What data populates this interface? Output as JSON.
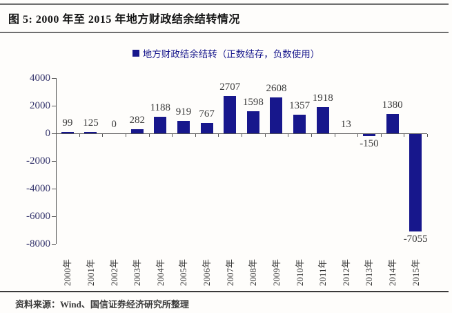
{
  "figure": {
    "title": "图 5: 2000 年至 2015 年地方财政结余结转情况",
    "source": "资料来源：Wind、国信证券经济研究所整理"
  },
  "legend": {
    "label": "地方财政结余结转（正数结存，负数使用）"
  },
  "colors": {
    "bar": "#17178c",
    "legend_text": "#17178c",
    "axis": "#555555",
    "ytick_text": "#33336b",
    "value_text": "#3b3b3b"
  },
  "chart_data": {
    "type": "bar",
    "title": "2000 年至 2015 年地方财政结余结转情况",
    "legend": "地方财政结余结转（正数结存，负数使用）",
    "categories": [
      "2000年",
      "2001年",
      "2002年",
      "2003年",
      "2004年",
      "2005年",
      "2006年",
      "2007年",
      "2008年",
      "2009年",
      "2010年",
      "2011年",
      "2012年",
      "2013年",
      "2014年",
      "2015年"
    ],
    "values": [
      99,
      125,
      0,
      282,
      1188,
      919,
      767,
      2707,
      1598,
      2608,
      1357,
      1918,
      13,
      -150,
      1380,
      -7055
    ],
    "bar_color": "#17178c",
    "xlabel": "",
    "ylabel": "",
    "ylim": [
      -8000,
      4000
    ],
    "yticks": [
      4000,
      2000,
      0,
      -2000,
      -4000,
      -6000,
      -8000
    ],
    "grid": false,
    "legend_position": "top-center",
    "value_labels_shown": true
  }
}
